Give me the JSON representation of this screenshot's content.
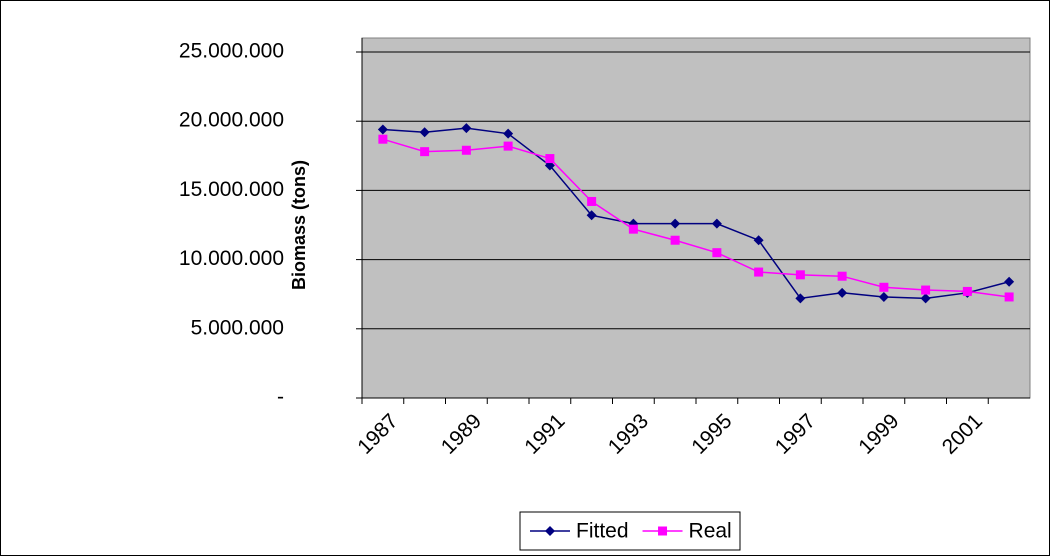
{
  "chart_data": {
    "type": "line",
    "y_label": "Biomass (tons)",
    "categories": [
      "1987",
      null,
      "1989",
      null,
      "1991",
      null,
      "1993",
      null,
      "1995",
      null,
      "1997",
      null,
      "1999",
      null,
      "2001",
      null
    ],
    "series": [
      {
        "name": "Fitted",
        "color": "#000080",
        "marker": "diamond",
        "values": [
          19400000,
          19200000,
          19500000,
          19100000,
          16800000,
          13200000,
          12600000,
          12600000,
          12600000,
          11400000,
          7200000,
          7600000,
          7300000,
          7200000,
          7600000,
          8400000
        ]
      },
      {
        "name": "Real",
        "color": "#ff00ff",
        "marker": "square",
        "values": [
          18700000,
          17800000,
          17900000,
          18200000,
          17300000,
          14200000,
          12200000,
          11400000,
          10500000,
          9100000,
          8900000,
          8800000,
          8000000,
          7800000,
          7700000,
          7300000
        ]
      }
    ],
    "ylim": [
      0,
      25000000
    ],
    "yticks": [
      {
        "value": 0,
        "label": "-"
      },
      {
        "value": 5000000,
        "label": "5.000.000"
      },
      {
        "value": 10000000,
        "label": "10.000.000"
      },
      {
        "value": 15000000,
        "label": "15.000.000"
      },
      {
        "value": 20000000,
        "label": "20.000.000"
      },
      {
        "value": 25000000,
        "label": "25.000.000"
      }
    ],
    "grid": true,
    "legend": "bottom",
    "plot_background": "#c0c0c0"
  }
}
